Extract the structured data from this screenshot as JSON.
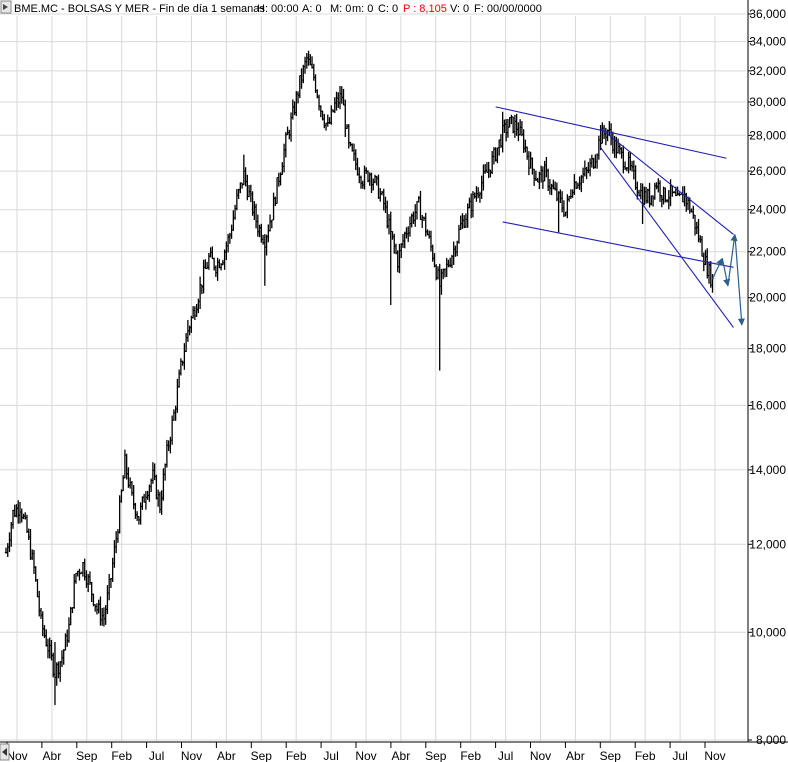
{
  "header": {
    "ticker": "BME.MC - BOLSAS Y MER - Fin de día 1 semanas",
    "h": "H: 00:00",
    "a": "A: 0",
    "m": "M: 0",
    "mm": "m: 0",
    "c": "C: 0",
    "p": "P : 8,105",
    "v": "V: 0",
    "f": "F: 00/00/0000",
    "p_color": "#ff0000"
  },
  "chart_data": {
    "type": "line",
    "subtype": "weekly price bars",
    "yscale": "log",
    "ylim": [
      8000,
      36000
    ],
    "yticks": [
      {
        "value": 8000,
        "label": "8,000"
      },
      {
        "value": 10000,
        "label": "10,000"
      },
      {
        "value": 12000,
        "label": "12,000"
      },
      {
        "value": 14000,
        "label": "14,000"
      },
      {
        "value": 16000,
        "label": "16,000"
      },
      {
        "value": 18000,
        "label": "18,000"
      },
      {
        "value": 20000,
        "label": "20,000"
      },
      {
        "value": 22000,
        "label": "22,000"
      },
      {
        "value": 24000,
        "label": "24,000"
      },
      {
        "value": 26000,
        "label": "26,000"
      },
      {
        "value": 28000,
        "label": "28,000"
      },
      {
        "value": 30000,
        "label": "30,000"
      },
      {
        "value": 32000,
        "label": "32,000"
      },
      {
        "value": 34000,
        "label": "34,000"
      },
      {
        "value": 36000,
        "label": "36,000"
      }
    ],
    "xticks": [
      "Nov",
      "Abr",
      "Sep",
      "Feb",
      "Jul",
      "Nov",
      "Abr",
      "Sep",
      "Feb",
      "Jul",
      "Nov",
      "Abr",
      "Sep",
      "Feb",
      "Jul",
      "Nov",
      "Abr",
      "Sep",
      "Feb",
      "Jul",
      "Nov"
    ],
    "price_path": [
      [
        0,
        11800
      ],
      [
        1,
        12800
      ],
      [
        2,
        13000
      ],
      [
        3,
        12300
      ],
      [
        4,
        11400
      ],
      [
        5,
        10200
      ],
      [
        6,
        9700
      ],
      [
        7,
        9200
      ],
      [
        8,
        9500
      ],
      [
        9,
        10100
      ],
      [
        10,
        11300
      ],
      [
        11,
        11500
      ],
      [
        12,
        11000
      ],
      [
        13,
        10500
      ],
      [
        14,
        10300
      ],
      [
        15,
        11200
      ],
      [
        16,
        12500
      ],
      [
        17,
        14200
      ],
      [
        18,
        13200
      ],
      [
        19,
        12700
      ],
      [
        20,
        13400
      ],
      [
        21,
        13800
      ],
      [
        22,
        13000
      ],
      [
        23,
        14500
      ],
      [
        24,
        15700
      ],
      [
        25,
        17300
      ],
      [
        26,
        18700
      ],
      [
        27,
        19600
      ],
      [
        28,
        20700
      ],
      [
        29,
        21700
      ],
      [
        30,
        21400
      ],
      [
        31,
        21800
      ],
      [
        32,
        22800
      ],
      [
        33,
        24500
      ],
      [
        34,
        25800
      ],
      [
        35,
        24400
      ],
      [
        36,
        23200
      ],
      [
        37,
        22600
      ],
      [
        38,
        23800
      ],
      [
        39,
        25700
      ],
      [
        40,
        27600
      ],
      [
        41,
        29200
      ],
      [
        42,
        31200
      ],
      [
        43,
        32800
      ],
      [
        44,
        31600
      ],
      [
        45,
        29600
      ],
      [
        46,
        28400
      ],
      [
        47,
        29800
      ],
      [
        48,
        30400
      ],
      [
        49,
        27300
      ],
      [
        50,
        26400
      ],
      [
        51,
        25600
      ],
      [
        52,
        25900
      ],
      [
        53,
        25200
      ],
      [
        54,
        24300
      ],
      [
        55,
        22800
      ],
      [
        56,
        21600
      ],
      [
        57,
        22800
      ],
      [
        58,
        23600
      ],
      [
        59,
        24200
      ],
      [
        60,
        23100
      ],
      [
        61,
        21900
      ],
      [
        62,
        20500
      ],
      [
        63,
        21300
      ],
      [
        64,
        22100
      ],
      [
        65,
        23200
      ],
      [
        66,
        23900
      ],
      [
        67,
        24700
      ],
      [
        68,
        25400
      ],
      [
        69,
        26100
      ],
      [
        70,
        27000
      ],
      [
        71,
        28100
      ],
      [
        72,
        28700
      ],
      [
        73,
        28500
      ],
      [
        74,
        27600
      ],
      [
        75,
        26300
      ],
      [
        76,
        25600
      ],
      [
        77,
        25900
      ],
      [
        78,
        25100
      ],
      [
        79,
        24500
      ],
      [
        80,
        23900
      ],
      [
        81,
        25300
      ],
      [
        82,
        25600
      ],
      [
        83,
        25900
      ],
      [
        84,
        26600
      ],
      [
        85,
        27900
      ],
      [
        86,
        28300
      ],
      [
        87,
        27400
      ],
      [
        88,
        26800
      ],
      [
        89,
        26300
      ],
      [
        90,
        25400
      ],
      [
        91,
        24700
      ],
      [
        92,
        24600
      ],
      [
        93,
        25400
      ],
      [
        94,
        24700
      ],
      [
        95,
        24800
      ],
      [
        96,
        24400
      ],
      [
        97,
        24700
      ],
      [
        98,
        23900
      ],
      [
        99,
        22700
      ],
      [
        100,
        21500
      ],
      [
        101,
        20700
      ]
    ],
    "high_points": [
      [
        2,
        13100
      ],
      [
        7,
        9800
      ],
      [
        17,
        14600
      ],
      [
        26,
        19100
      ],
      [
        34,
        26900
      ],
      [
        43,
        33200
      ],
      [
        48,
        31000
      ],
      [
        71,
        29400
      ],
      [
        85,
        28600
      ],
      [
        97,
        25200
      ]
    ],
    "low_points": [
      [
        7,
        8600
      ],
      [
        14,
        10200
      ],
      [
        19,
        12500
      ],
      [
        22,
        12800
      ],
      [
        37,
        20500
      ],
      [
        55,
        19700
      ],
      [
        62,
        17200
      ],
      [
        79,
        22900
      ],
      [
        91,
        23300
      ],
      [
        101,
        20500
      ]
    ],
    "trendlines": [
      {
        "points": [
          [
            70,
            29700
          ],
          [
            103,
            26700
          ]
        ]
      },
      {
        "points": [
          [
            71,
            23400
          ],
          [
            104,
            21300
          ]
        ]
      },
      {
        "points": [
          [
            85,
            28400
          ],
          [
            104,
            22800
          ]
        ]
      },
      {
        "points": [
          [
            85,
            27300
          ],
          [
            104,
            18800
          ]
        ]
      }
    ],
    "projection_arrows": [
      {
        "points": [
          [
            101,
            20800
          ],
          [
            102.4,
            21700
          ],
          [
            103.2,
            20500
          ],
          [
            104.2,
            22800
          ],
          [
            105.2,
            18900
          ]
        ]
      }
    ],
    "colors": {
      "bars": "#000000",
      "trendlines": "#1f1fb0",
      "projection": "#2a5f8f",
      "grid": "#d8d8d8"
    }
  }
}
